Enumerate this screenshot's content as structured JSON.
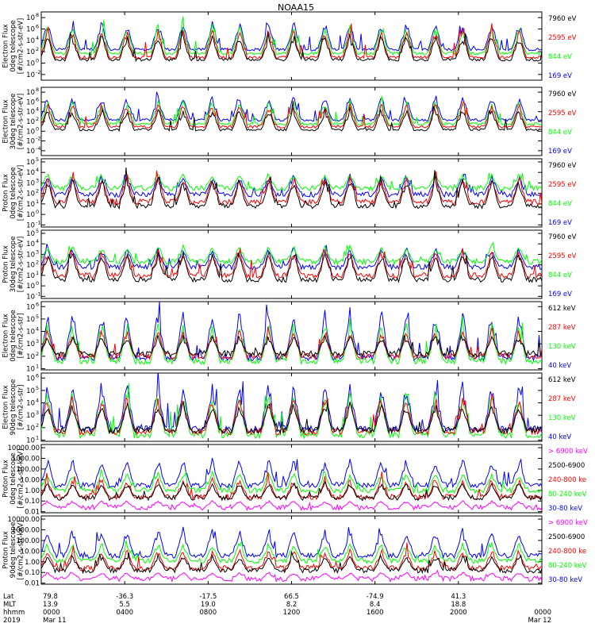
{
  "title": "NOAA15",
  "colors": {
    "black": "#000000",
    "red": "#ff0000",
    "green": "#00ff00",
    "blue": "#0000ff",
    "magenta": "#ff00ff"
  },
  "panels": [
    {
      "ylabel_lines": [
        "TED",
        "Electron Flux",
        "0deg telescope",
        "[#/cm2-s-str-eV]"
      ],
      "yticks": [
        {
          "label": "10",
          "exp": "8",
          "v": 8
        },
        {
          "label": "10",
          "exp": "6",
          "v": 6
        },
        {
          "label": "10",
          "exp": "4",
          "v": 4
        },
        {
          "label": "10",
          "exp": "2",
          "v": 2
        },
        {
          "label": "10",
          "exp": "0",
          "v": 0
        },
        {
          "label": "10",
          "exp": "-2",
          "v": -2
        }
      ],
      "legend": [
        {
          "text": "7960 eV",
          "color": "#000000"
        },
        {
          "text": "2595 eV",
          "color": "#ff0000"
        },
        {
          "text": "844 eV",
          "color": "#00ff00"
        },
        {
          "text": "169 eV",
          "color": "#0000ff"
        }
      ]
    },
    {
      "ylabel_lines": [
        "TED",
        "Electron Flux",
        "30deg telescope",
        "[#/cm2-s-str-eV]"
      ],
      "yticks": [
        {
          "label": "10",
          "exp": "8",
          "v": 8
        },
        {
          "label": "10",
          "exp": "6",
          "v": 6
        },
        {
          "label": "10",
          "exp": "4",
          "v": 4
        },
        {
          "label": "10",
          "exp": "2",
          "v": 2
        },
        {
          "label": "10",
          "exp": "0",
          "v": 0
        },
        {
          "label": "10",
          "exp": "-2",
          "v": -2
        },
        {
          "label": "10",
          "exp": "-4",
          "v": -4
        }
      ],
      "legend": [
        {
          "text": "7960 eV",
          "color": "#000000"
        },
        {
          "text": "2595 eV",
          "color": "#ff0000"
        },
        {
          "text": "844 eV",
          "color": "#00ff00"
        },
        {
          "text": "169 eV",
          "color": "#0000ff"
        }
      ]
    },
    {
      "ylabel_lines": [
        "TED",
        "Proton Flux",
        "0deg telescope",
        "[#/cm2-s-str-eV]"
      ],
      "yticks": [
        {
          "label": "10",
          "exp": "5",
          "v": 5
        },
        {
          "label": "10",
          "exp": "4",
          "v": 4
        },
        {
          "label": "10",
          "exp": "3",
          "v": 3
        },
        {
          "label": "10",
          "exp": "2",
          "v": 2
        },
        {
          "label": "10",
          "exp": "1",
          "v": 1
        },
        {
          "label": "10",
          "exp": "0",
          "v": 0
        },
        {
          "label": "10",
          "exp": "-1",
          "v": -1
        }
      ],
      "legend": [
        {
          "text": "7960 eV",
          "color": "#000000"
        },
        {
          "text": "2595 eV",
          "color": "#ff0000"
        },
        {
          "text": "844 eV",
          "color": "#00ff00"
        },
        {
          "text": "169 eV",
          "color": "#0000ff"
        }
      ]
    },
    {
      "ylabel_lines": [
        "TED",
        "Proton Flux",
        "30deg telescope",
        "[#/cm2-s-str-eV]"
      ],
      "yticks": [
        {
          "label": "10",
          "exp": "5",
          "v": 5
        },
        {
          "label": "10",
          "exp": "4",
          "v": 4
        },
        {
          "label": "10",
          "exp": "3",
          "v": 3
        },
        {
          "label": "10",
          "exp": "2",
          "v": 2
        },
        {
          "label": "10",
          "exp": "1",
          "v": 1
        },
        {
          "label": "10",
          "exp": "0",
          "v": 0
        },
        {
          "label": "10",
          "exp": "-1",
          "v": -1
        }
      ],
      "legend": [
        {
          "text": "7960 eV",
          "color": "#000000"
        },
        {
          "text": "2595 eV",
          "color": "#ff0000"
        },
        {
          "text": "844 eV",
          "color": "#00ff00"
        },
        {
          "text": "169 eV",
          "color": "#0000ff"
        }
      ]
    },
    {
      "ylabel_lines": [
        "MEPED",
        "Electron Flux",
        "0deg telescope",
        "[#/cm2-s-str]"
      ],
      "yticks": [
        {
          "label": "10",
          "exp": "6",
          "v": 6
        },
        {
          "label": "10",
          "exp": "5",
          "v": 5
        },
        {
          "label": "10",
          "exp": "4",
          "v": 4
        },
        {
          "label": "10",
          "exp": "3",
          "v": 3
        },
        {
          "label": "10",
          "exp": "2",
          "v": 2
        },
        {
          "label": "10",
          "exp": "1",
          "v": 1
        }
      ],
      "legend": [
        {
          "text": "612 keV",
          "color": "#000000"
        },
        {
          "text": "287 keV",
          "color": "#ff0000"
        },
        {
          "text": "130 keV",
          "color": "#00ff00"
        },
        {
          "text": "40 keV",
          "color": "#0000ff"
        }
      ]
    },
    {
      "ylabel_lines": [
        "MEPED",
        "Electron Flux",
        "90deg telescope",
        "[#/cm2-s-str]"
      ],
      "yticks": [
        {
          "label": "10",
          "exp": "6",
          "v": 6
        },
        {
          "label": "10",
          "exp": "5",
          "v": 5
        },
        {
          "label": "10",
          "exp": "4",
          "v": 4
        },
        {
          "label": "10",
          "exp": "3",
          "v": 3
        },
        {
          "label": "10",
          "exp": "2",
          "v": 2
        },
        {
          "label": "10",
          "exp": "1",
          "v": 1
        }
      ],
      "legend": [
        {
          "text": "612 keV",
          "color": "#000000"
        },
        {
          "text": "287 keV",
          "color": "#ff0000"
        },
        {
          "text": "130 keV",
          "color": "#00ff00"
        },
        {
          "text": "40 keV",
          "color": "#0000ff"
        }
      ]
    },
    {
      "ylabel_lines": [
        "MEPED",
        "Proton Flux",
        "0deg telescope",
        "[#/cm2-s-str-keV]"
      ],
      "yticks": [
        {
          "label": "10000.00",
          "exp": "",
          "v": 4
        },
        {
          "label": "1000.00",
          "exp": "",
          "v": 3
        },
        {
          "label": "100.00",
          "exp": "",
          "v": 2
        },
        {
          "label": "10.00",
          "exp": "",
          "v": 1
        },
        {
          "label": "1.00",
          "exp": "",
          "v": 0
        },
        {
          "label": "0.10",
          "exp": "",
          "v": -1
        },
        {
          "label": "0.01",
          "exp": "",
          "v": -2
        }
      ],
      "legend": [
        {
          "text": "> 6900 keV",
          "color": "#ff00ff"
        },
        {
          "text": "2500-6900",
          "color": "#000000"
        },
        {
          "text": "240-800 ke",
          "color": "#ff0000"
        },
        {
          "text": "80-240 keV",
          "color": "#00ff00"
        },
        {
          "text": "30-80 keV",
          "color": "#0000ff"
        }
      ]
    },
    {
      "ylabel_lines": [
        "MEPED",
        "Proton Flux",
        "90deg telescope",
        "[#/cm2-s-str-keV]"
      ],
      "yticks": [
        {
          "label": "10000.00",
          "exp": "",
          "v": 4
        },
        {
          "label": "1000.00",
          "exp": "",
          "v": 3
        },
        {
          "label": "100.00",
          "exp": "",
          "v": 2
        },
        {
          "label": "10.00",
          "exp": "",
          "v": 1
        },
        {
          "label": "1.00",
          "exp": "",
          "v": 0
        },
        {
          "label": "0.10",
          "exp": "",
          "v": -1
        },
        {
          "label": "0.01",
          "exp": "",
          "v": -2
        }
      ],
      "legend": [
        {
          "text": "> 6900 keV",
          "color": "#ff00ff"
        },
        {
          "text": "2500-6900",
          "color": "#000000"
        },
        {
          "text": "240-800 ke",
          "color": "#ff0000"
        },
        {
          "text": "80-240 keV",
          "color": "#00ff00"
        },
        {
          "text": "30-80 keV",
          "color": "#0000ff"
        }
      ]
    }
  ],
  "xaxis": {
    "row_labels": [
      "Lat",
      "MLT",
      "hhmm",
      "2019"
    ],
    "ticks": [
      {
        "hours": 0,
        "lat": "79.8",
        "mlt": "13.9",
        "hhmm": "0000",
        "date": "Mar 11"
      },
      {
        "hours": 4,
        "lat": "-36.3",
        "mlt": "5.5",
        "hhmm": "0400",
        "date": ""
      },
      {
        "hours": 8,
        "lat": "-17.5",
        "mlt": "19.0",
        "hhmm": "0800",
        "date": ""
      },
      {
        "hours": 12,
        "lat": "66.5",
        "mlt": "8.2",
        "hhmm": "1200",
        "date": ""
      },
      {
        "hours": 16,
        "lat": "-74.9",
        "mlt": "8.4",
        "hhmm": "1600",
        "date": ""
      },
      {
        "hours": 20,
        "lat": "41.3",
        "mlt": "18.8",
        "hhmm": "2000",
        "date": ""
      },
      {
        "hours": 24,
        "lat": "",
        "mlt": "",
        "hhmm": "0000",
        "date": "Mar 12"
      }
    ]
  },
  "chart_data": {
    "type": "line",
    "title": "NOAA15",
    "x_range_hours": [
      0,
      24
    ],
    "peak_times_hours": [
      0.3,
      1.5,
      2.9,
      4.1,
      5.6,
      6.8,
      8.2,
      9.5,
      10.9,
      12.1,
      13.6,
      14.8,
      16.3,
      17.5,
      18.9,
      20.2,
      21.6,
      22.9
    ],
    "panels": [
      {
        "ylabel": "TED Electron Flux 0deg telescope [#/cm2-s-str-eV]",
        "scale": "log",
        "ylim_log10": [
          -3,
          9
        ],
        "series": [
          {
            "name": "7960 eV",
            "base_log10": 0.6,
            "peak_log10": 5.2
          },
          {
            "name": "2595 eV",
            "base_log10": 1.0,
            "peak_log10": 6.2
          },
          {
            "name": "844 eV",
            "base_log10": 1.7,
            "peak_log10": 6.8
          },
          {
            "name": "169 eV",
            "base_log10": 2.4,
            "peak_log10": 7.7
          }
        ]
      },
      {
        "ylabel": "TED Electron Flux 30deg telescope [#/cm2-s-str-eV]",
        "scale": "log",
        "ylim_log10": [
          -5,
          9
        ],
        "series": [
          {
            "name": "7960 eV",
            "base_log10": 0.3,
            "peak_log10": 5.0
          },
          {
            "name": "2595 eV",
            "base_log10": 0.9,
            "peak_log10": 6.0
          },
          {
            "name": "844 eV",
            "base_log10": 1.5,
            "peak_log10": 6.6
          },
          {
            "name": "169 eV",
            "base_log10": 2.3,
            "peak_log10": 7.6
          }
        ]
      },
      {
        "ylabel": "TED Proton Flux 0deg telescope [#/cm2-s-str-eV]",
        "scale": "log",
        "ylim_log10": [
          -1.2,
          5.3
        ],
        "series": [
          {
            "name": "7960 eV",
            "base_log10": 0.8,
            "peak_log10": 3.6
          },
          {
            "name": "2595 eV",
            "base_log10": 1.2,
            "peak_log10": 3.8
          },
          {
            "name": "844 eV",
            "base_log10": 2.5,
            "peak_log10": 4.0
          },
          {
            "name": "169 eV",
            "base_log10": 1.9,
            "peak_log10": 3.9
          }
        ]
      },
      {
        "ylabel": "TED Proton Flux 30deg telescope [#/cm2-s-str-eV]",
        "scale": "log",
        "ylim_log10": [
          -1.2,
          5.3
        ],
        "series": [
          {
            "name": "7960 eV",
            "base_log10": 0.6,
            "peak_log10": 3.5
          },
          {
            "name": "2595 eV",
            "base_log10": 1.0,
            "peak_log10": 3.6
          },
          {
            "name": "844 eV",
            "base_log10": 2.3,
            "peak_log10": 3.9
          },
          {
            "name": "169 eV",
            "base_log10": 1.8,
            "peak_log10": 3.8
          }
        ]
      },
      {
        "ylabel": "MEPED Electron Flux 0deg telescope [#/cm2-s-str]",
        "scale": "log",
        "ylim_log10": [
          0.9,
          6.4
        ],
        "series": [
          {
            "name": "612 keV",
            "base_log10": 2.2,
            "peak_log10": 3.8
          },
          {
            "name": "287 keV",
            "base_log10": 2.0,
            "peak_log10": 4.3
          },
          {
            "name": "130 keV",
            "base_log10": 1.6,
            "peak_log10": 5.0
          },
          {
            "name": "40 keV",
            "base_log10": 1.9,
            "peak_log10": 6.0
          }
        ]
      },
      {
        "ylabel": "MEPED Electron Flux 90deg telescope [#/cm2-s-str]",
        "scale": "log",
        "ylim_log10": [
          0.9,
          6.4
        ],
        "series": [
          {
            "name": "612 keV",
            "base_log10": 1.8,
            "peak_log10": 4.2
          },
          {
            "name": "287 keV",
            "base_log10": 1.7,
            "peak_log10": 4.8
          },
          {
            "name": "130 keV",
            "base_log10": 1.4,
            "peak_log10": 5.2
          },
          {
            "name": "40 keV",
            "base_log10": 1.9,
            "peak_log10": 6.0
          }
        ]
      },
      {
        "ylabel": "MEPED Proton Flux 0deg telescope [#/cm2-s-str-keV]",
        "scale": "log",
        "ylim_log10": [
          -2.1,
          4.3
        ],
        "series": [
          {
            "name": "> 6900 keV",
            "base_log10": -1.6,
            "peak_log10": -0.9
          },
          {
            "name": "2500-6900",
            "base_log10": -0.7,
            "peak_log10": 0.9
          },
          {
            "name": "240-800 ke",
            "base_log10": -0.6,
            "peak_log10": 1.2
          },
          {
            "name": "80-240 keV",
            "base_log10": 0.0,
            "peak_log10": 1.8
          },
          {
            "name": "30-80 keV",
            "base_log10": 0.5,
            "peak_log10": 3.1
          }
        ]
      },
      {
        "ylabel": "MEPED Proton Flux 90deg telescope [#/cm2-s-str-keV]",
        "scale": "log",
        "ylim_log10": [
          -2.1,
          4.3
        ],
        "series": [
          {
            "name": "> 6900 keV",
            "base_log10": -1.6,
            "peak_log10": -0.9
          },
          {
            "name": "2500-6900",
            "base_log10": -0.8,
            "peak_log10": 0.8
          },
          {
            "name": "240-800 ke",
            "base_log10": -0.6,
            "peak_log10": 1.3
          },
          {
            "name": "80-240 keV",
            "base_log10": 0.1,
            "peak_log10": 1.9
          },
          {
            "name": "30-80 keV",
            "base_log10": 0.6,
            "peak_log10": 3.3
          }
        ]
      }
    ]
  }
}
